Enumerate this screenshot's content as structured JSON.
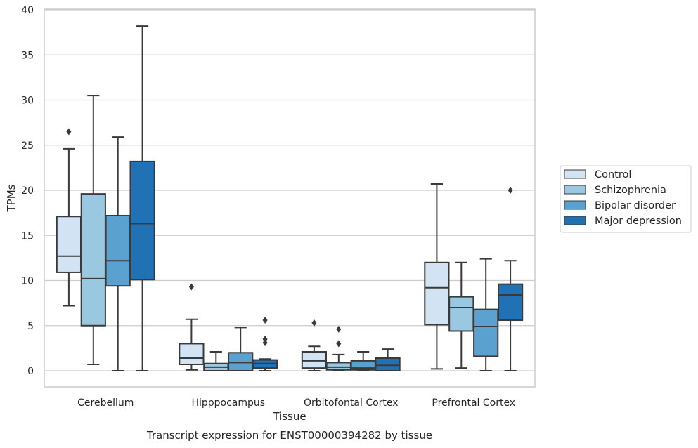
{
  "caption": "Transcript expression for ENST00000394282 by tissue",
  "chart_data": {
    "type": "box",
    "title": "",
    "xlabel": "Tissue",
    "ylabel": "TPMs",
    "ylim": [
      -1.8,
      40.2
    ],
    "yticks": [
      0,
      5,
      10,
      15,
      20,
      25,
      30,
      35,
      40
    ],
    "grid": true,
    "legend_position": "right",
    "categories": [
      "Cerebellum",
      "Hipppocampus",
      "Orbitofontal Cortex",
      "Prefrontal Cortex"
    ],
    "series": [
      {
        "name": "Control",
        "color": "#d2e3f3",
        "boxes": [
          {
            "whisker_low": 7.2,
            "q1": 10.9,
            "median": 12.7,
            "q3": 17.1,
            "whisker_high": 24.6,
            "outliers": [
              26.5
            ]
          },
          {
            "whisker_low": 0.1,
            "q1": 0.7,
            "median": 1.4,
            "q3": 3.0,
            "whisker_high": 5.7,
            "outliers": [
              9.3
            ]
          },
          {
            "whisker_low": 0.0,
            "q1": 0.3,
            "median": 1.1,
            "q3": 2.1,
            "whisker_high": 2.7,
            "outliers": [
              5.3
            ]
          },
          {
            "whisker_low": 0.2,
            "q1": 5.1,
            "median": 9.2,
            "q3": 12.0,
            "whisker_high": 20.7,
            "outliers": []
          }
        ]
      },
      {
        "name": "Schizophrenia",
        "color": "#9ac8e0",
        "boxes": [
          {
            "whisker_low": 0.7,
            "q1": 5.0,
            "median": 10.2,
            "q3": 19.6,
            "whisker_high": 30.5,
            "outliers": []
          },
          {
            "whisker_low": 0.0,
            "q1": 0.0,
            "median": 0.4,
            "q3": 0.8,
            "whisker_high": 2.1,
            "outliers": []
          },
          {
            "whisker_low": 0.0,
            "q1": 0.1,
            "median": 0.4,
            "q3": 0.9,
            "whisker_high": 1.8,
            "outliers": [
              3.0,
              4.6
            ]
          },
          {
            "whisker_low": 0.3,
            "q1": 4.4,
            "median": 7.0,
            "q3": 8.2,
            "whisker_high": 12.0,
            "outliers": []
          }
        ]
      },
      {
        "name": "Bipolar disorder",
        "color": "#5aa1cf",
        "boxes": [
          {
            "whisker_low": 0.0,
            "q1": 9.4,
            "median": 12.2,
            "q3": 17.2,
            "whisker_high": 25.9,
            "outliers": []
          },
          {
            "whisker_low": 0.0,
            "q1": 0.0,
            "median": 0.9,
            "q3": 2.0,
            "whisker_high": 4.8,
            "outliers": []
          },
          {
            "whisker_low": 0.0,
            "q1": 0.1,
            "median": 0.3,
            "q3": 1.1,
            "whisker_high": 2.1,
            "outliers": []
          },
          {
            "whisker_low": 0.0,
            "q1": 1.6,
            "median": 4.9,
            "q3": 6.8,
            "whisker_high": 12.4,
            "outliers": []
          }
        ]
      },
      {
        "name": "Major depression",
        "color": "#2171b5",
        "boxes": [
          {
            "whisker_low": 0.0,
            "q1": 10.1,
            "median": 16.3,
            "q3": 23.2,
            "whisker_high": 38.2,
            "outliers": []
          },
          {
            "whisker_low": 0.0,
            "q1": 0.3,
            "median": 0.8,
            "q3": 1.2,
            "whisker_high": 1.3,
            "outliers": [
              3.1,
              3.5,
              5.6
            ]
          },
          {
            "whisker_low": 0.0,
            "q1": 0.0,
            "median": 0.6,
            "q3": 1.4,
            "whisker_high": 2.4,
            "outliers": []
          },
          {
            "whisker_low": 0.0,
            "q1": 5.6,
            "median": 8.4,
            "q3": 9.6,
            "whisker_high": 12.2,
            "outliers": [
              20.0
            ]
          }
        ]
      }
    ]
  }
}
